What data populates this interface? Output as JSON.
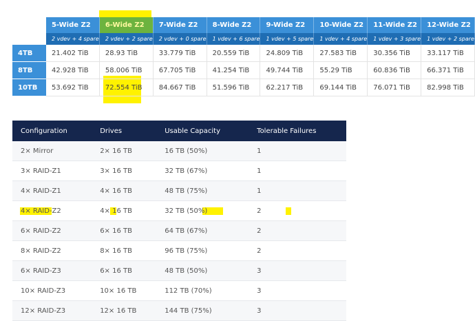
{
  "top_table": {
    "columns": [
      {
        "title": "5-Wide Z2",
        "subtitle": "2 vdev + 4 spare"
      },
      {
        "title": "6-Wide Z2",
        "subtitle": "2 vdev + 2 spare"
      },
      {
        "title": "7-Wide Z2",
        "subtitle": "2 vdev + 0 spare"
      },
      {
        "title": "8-Wide Z2",
        "subtitle": "1 vdev + 6 spare"
      },
      {
        "title": "9-Wide Z2",
        "subtitle": "1 vdev + 5 spare"
      },
      {
        "title": "10-Wide Z2",
        "subtitle": "1 vdev + 4 spare"
      },
      {
        "title": "11-Wide Z2",
        "subtitle": "1 vdev + 3 spare"
      },
      {
        "title": "12-Wide Z2",
        "subtitle": "1 vdev + 2 spare"
      }
    ],
    "rows": [
      {
        "label": "4TB",
        "values": [
          "21.402 TiB",
          "28.93 TiB",
          "33.779 TiB",
          "20.559 TiB",
          "24.809 TiB",
          "27.583 TiB",
          "30.356 TiB",
          "33.117 TiB"
        ]
      },
      {
        "label": "8TB",
        "values": [
          "42.928 TiB",
          "58.006 TiB",
          "67.705 TiB",
          "41.254 TiB",
          "49.744 TiB",
          "55.29 TiB",
          "60.836 TiB",
          "66.371 TiB"
        ]
      },
      {
        "label": "10TB",
        "values": [
          "53.692 TiB",
          "72.554 TiB",
          "84.667 TiB",
          "51.596 TiB",
          "62.217 TiB",
          "69.144 TiB",
          "76.071 TiB",
          "82.998 TiB"
        ]
      }
    ]
  },
  "bottom_table": {
    "headers": [
      "Configuration",
      "Drives",
      "Usable Capacity",
      "Tolerable Failures"
    ],
    "rows": [
      [
        "2× Mirror",
        "2× 16 TB",
        "16 TB (50%)",
        "1"
      ],
      [
        "3× RAID-Z1",
        "3× 16 TB",
        "32 TB (67%)",
        "1"
      ],
      [
        "4× RAID-Z1",
        "4× 16 TB",
        "48 TB (75%)",
        "1"
      ],
      [
        "4× RAID-Z2",
        "4× 16 TB",
        "32 TB (50%)",
        "2"
      ],
      [
        "6× RAID-Z2",
        "6× 16 TB",
        "64 TB (67%)",
        "2"
      ],
      [
        "8× RAID-Z2",
        "8× 16 TB",
        "96 TB (75%)",
        "2"
      ],
      [
        "6× RAID-Z3",
        "6× 16 TB",
        "48 TB (50%)",
        "3"
      ],
      [
        "10× RAID-Z3",
        "10× 16 TB",
        "112 TB (70%)",
        "3"
      ],
      [
        "12× RAID-Z3",
        "12× 16 TB",
        "144 TB (75%)",
        "3"
      ]
    ]
  }
}
